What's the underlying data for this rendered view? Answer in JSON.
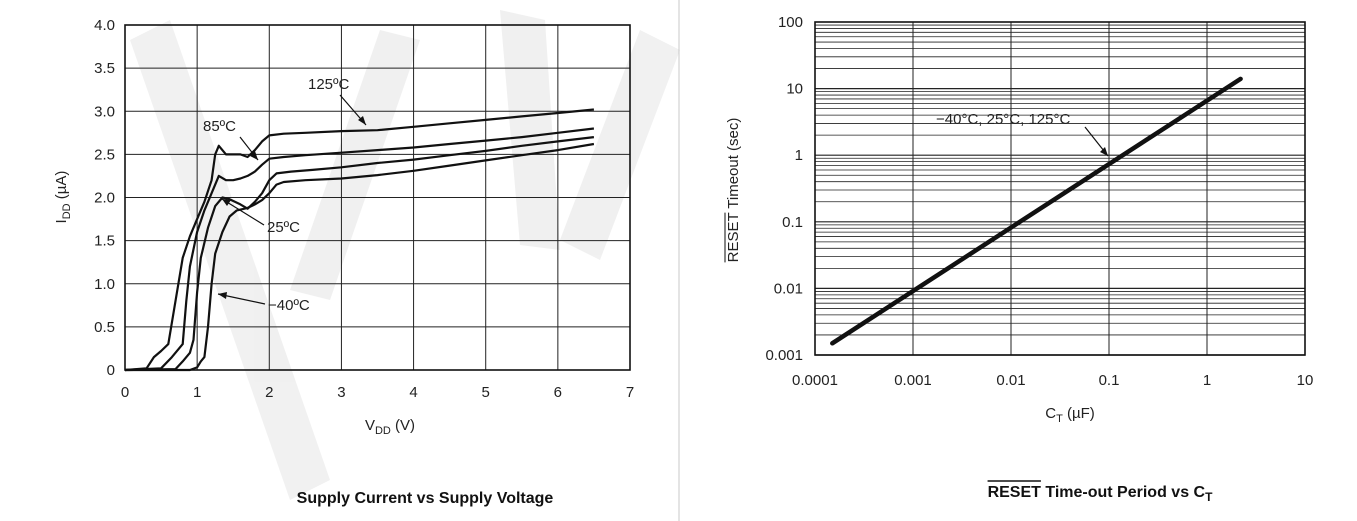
{
  "chart_data": [
    {
      "type": "line",
      "title": "Supply Current vs Supply Voltage",
      "xlabel": {
        "main": "V",
        "sub": "DD",
        "tail": " (V)"
      },
      "ylabel": {
        "main": "I",
        "sub": "DD",
        "tail": " (µA)"
      },
      "xlim": [
        0,
        7
      ],
      "ylim": [
        0,
        4.0
      ],
      "x_ticks": [
        "0",
        "1",
        "2",
        "3",
        "4",
        "5",
        "6",
        "7"
      ],
      "y_ticks": [
        "0",
        "0.5",
        "1.0",
        "1.5",
        "2.0",
        "2.5",
        "3.0",
        "3.5",
        "4.0"
      ],
      "grid": true,
      "series": [
        {
          "name": "125ºC",
          "points": [
            [
              0.0,
              0
            ],
            [
              0.3,
              0.02
            ],
            [
              0.4,
              0.15
            ],
            [
              0.5,
              0.22
            ],
            [
              0.6,
              0.3
            ],
            [
              0.7,
              0.8
            ],
            [
              0.8,
              1.3
            ],
            [
              0.9,
              1.55
            ],
            [
              1.0,
              1.75
            ],
            [
              1.1,
              1.95
            ],
            [
              1.2,
              2.2
            ],
            [
              1.25,
              2.5
            ],
            [
              1.3,
              2.6
            ],
            [
              1.4,
              2.5
            ],
            [
              1.5,
              2.5
            ],
            [
              1.6,
              2.5
            ],
            [
              1.7,
              2.47
            ],
            [
              1.8,
              2.55
            ],
            [
              1.9,
              2.65
            ],
            [
              2.0,
              2.72
            ],
            [
              2.2,
              2.74
            ],
            [
              2.5,
              2.75
            ],
            [
              3.0,
              2.77
            ],
            [
              3.5,
              2.78
            ],
            [
              4.0,
              2.82
            ],
            [
              4.5,
              2.86
            ],
            [
              5.0,
              2.9
            ],
            [
              5.5,
              2.94
            ],
            [
              6.0,
              2.98
            ],
            [
              6.5,
              3.02
            ]
          ]
        },
        {
          "name": "85ºC",
          "points": [
            [
              0.0,
              0
            ],
            [
              0.5,
              0.02
            ],
            [
              0.65,
              0.15
            ],
            [
              0.8,
              0.3
            ],
            [
              0.85,
              0.8
            ],
            [
              0.9,
              1.2
            ],
            [
              1.0,
              1.6
            ],
            [
              1.1,
              1.85
            ],
            [
              1.2,
              2.05
            ],
            [
              1.3,
              2.25
            ],
            [
              1.4,
              2.2
            ],
            [
              1.5,
              2.2
            ],
            [
              1.6,
              2.22
            ],
            [
              1.7,
              2.25
            ],
            [
              1.8,
              2.3
            ],
            [
              1.9,
              2.38
            ],
            [
              2.0,
              2.45
            ],
            [
              2.2,
              2.47
            ],
            [
              2.5,
              2.49
            ],
            [
              3.0,
              2.52
            ],
            [
              3.5,
              2.55
            ],
            [
              4.0,
              2.58
            ],
            [
              4.5,
              2.62
            ],
            [
              5.0,
              2.66
            ],
            [
              5.5,
              2.7
            ],
            [
              6.0,
              2.75
            ],
            [
              6.5,
              2.8
            ]
          ]
        },
        {
          "name": "25ºC",
          "points": [
            [
              0.0,
              0
            ],
            [
              0.7,
              0.01
            ],
            [
              0.8,
              0.1
            ],
            [
              0.9,
              0.2
            ],
            [
              0.95,
              0.35
            ],
            [
              1.0,
              0.9
            ],
            [
              1.05,
              1.3
            ],
            [
              1.15,
              1.65
            ],
            [
              1.25,
              1.9
            ],
            [
              1.35,
              2.0
            ],
            [
              1.45,
              1.98
            ],
            [
              1.6,
              1.92
            ],
            [
              1.7,
              1.87
            ],
            [
              1.8,
              1.95
            ],
            [
              1.9,
              2.05
            ],
            [
              2.0,
              2.2
            ],
            [
              2.1,
              2.28
            ],
            [
              2.3,
              2.3
            ],
            [
              2.6,
              2.32
            ],
            [
              3.0,
              2.35
            ],
            [
              3.5,
              2.4
            ],
            [
              4.0,
              2.44
            ],
            [
              4.5,
              2.49
            ],
            [
              5.0,
              2.54
            ],
            [
              5.5,
              2.6
            ],
            [
              6.0,
              2.65
            ],
            [
              6.5,
              2.7
            ]
          ]
        },
        {
          "name": "−40ºC",
          "points": [
            [
              0.0,
              0
            ],
            [
              0.9,
              0.0
            ],
            [
              1.0,
              0.03
            ],
            [
              1.05,
              0.1
            ],
            [
              1.1,
              0.15
            ],
            [
              1.15,
              0.5
            ],
            [
              1.2,
              1.0
            ],
            [
              1.25,
              1.35
            ],
            [
              1.35,
              1.6
            ],
            [
              1.45,
              1.78
            ],
            [
              1.55,
              1.85
            ],
            [
              1.7,
              1.88
            ],
            [
              1.8,
              1.92
            ],
            [
              1.9,
              1.97
            ],
            [
              2.0,
              2.05
            ],
            [
              2.1,
              2.15
            ],
            [
              2.2,
              2.18
            ],
            [
              2.5,
              2.2
            ],
            [
              3.0,
              2.22
            ],
            [
              3.5,
              2.26
            ],
            [
              4.0,
              2.31
            ],
            [
              4.5,
              2.37
            ],
            [
              5.0,
              2.43
            ],
            [
              5.5,
              2.49
            ],
            [
              6.0,
              2.55
            ],
            [
              6.5,
              2.62
            ]
          ]
        }
      ],
      "annotations": [
        "125ºC",
        "85ºC",
        "25ºC",
        "−40ºC"
      ]
    },
    {
      "type": "line",
      "title": {
        "over": "RESET",
        "rest": " Time-out Period vs C",
        "sub": "T"
      },
      "xlabel": {
        "main": "C",
        "sub": "T",
        "tail": " (µF)"
      },
      "ylabel": {
        "over": "RESET",
        "rest": " Timeout (sec)"
      },
      "x_scale": "log",
      "y_scale": "log",
      "xlim": [
        0.0001,
        10
      ],
      "ylim": [
        0.001,
        100
      ],
      "x_ticks": [
        "0.0001",
        "0.001",
        "0.01",
        "0.1",
        "1",
        "10"
      ],
      "y_ticks": [
        "0.001",
        "0.01",
        "0.1",
        "1",
        "10",
        "100"
      ],
      "grid": true,
      "series": [
        {
          "name": "−40°C, 25°C, 125°C",
          "points": [
            [
              0.00015,
              0.0015
            ],
            [
              2.2,
              14
            ]
          ]
        }
      ],
      "annotations": [
        "−40°C, 25°C, 125°C"
      ]
    }
  ]
}
